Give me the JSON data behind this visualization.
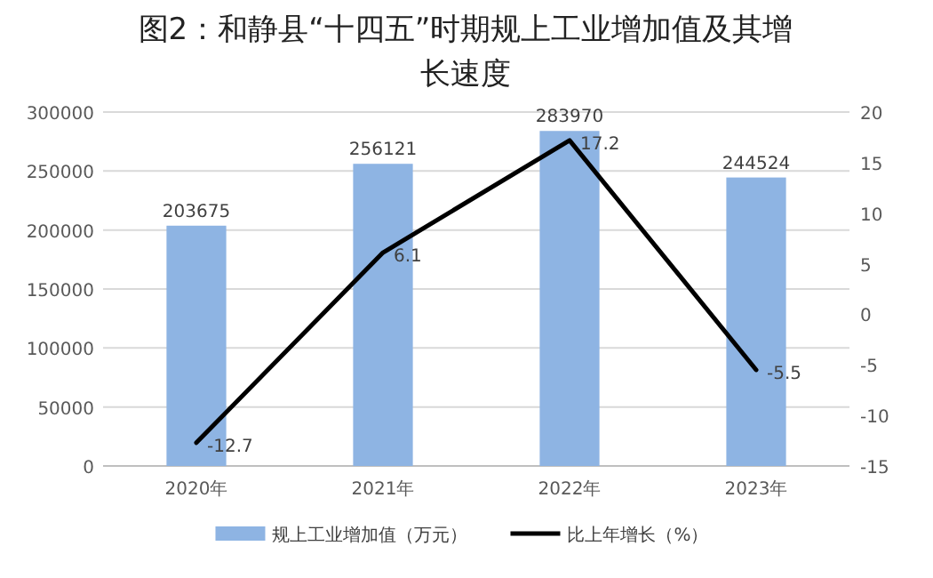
{
  "chart_data": {
    "type": "bar",
    "title": "图2：和静县“十四五”时期规上工业增加值及其增长速度",
    "categories": [
      "2020年",
      "2021年",
      "2022年",
      "2023年"
    ],
    "series": [
      {
        "name": "规上工业增加值（万元）",
        "color": "#8eb4e3",
        "values": [
          203675,
          256121,
          283970,
          244524
        ]
      },
      {
        "name": "比上年增长（%）",
        "type": "line",
        "axis": "y2",
        "color": "#000000",
        "values": [
          -12.7,
          6.1,
          17.2,
          -5.5
        ]
      }
    ],
    "ylim": [
      0,
      300000
    ],
    "yticks": [
      0,
      50000,
      100000,
      150000,
      200000,
      250000,
      300000
    ],
    "y2lim": [
      -15,
      20
    ],
    "y2ticks": [
      -15,
      -10,
      -5,
      0,
      5,
      10,
      15,
      20
    ],
    "grid": "y",
    "legend": "bottom",
    "data_labels": true,
    "marker": "none"
  }
}
